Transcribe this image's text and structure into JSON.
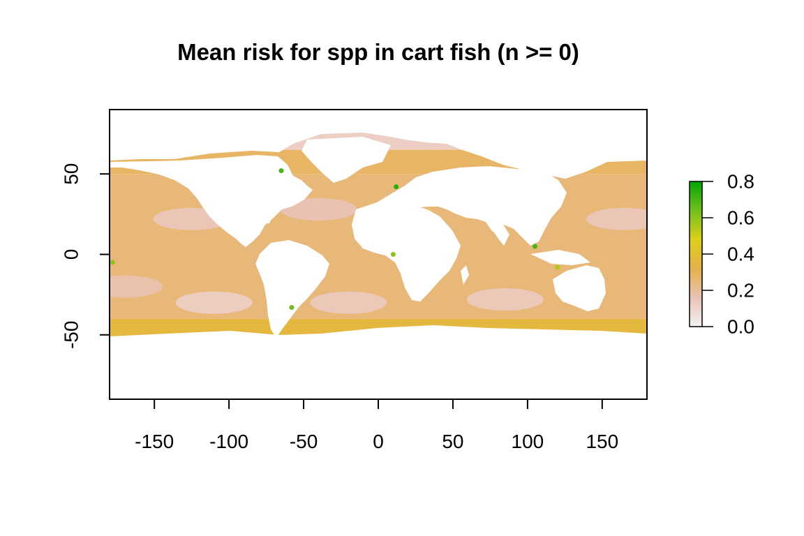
{
  "chart_data": {
    "type": "heatmap",
    "title": "Mean risk for spp in cart fish (n >= 0)",
    "xlabel": "",
    "ylabel": "",
    "xlim": [
      -180,
      180
    ],
    "ylim": [
      -90,
      90
    ],
    "x_ticks": [
      -150,
      -100,
      -50,
      0,
      50,
      100,
      150
    ],
    "x_tick_labels": [
      "-150",
      "-100",
      "-50",
      "0",
      "50",
      "100",
      "150"
    ],
    "y_ticks": [
      -50,
      0,
      50
    ],
    "y_tick_labels": [
      "-50",
      "0",
      "50"
    ],
    "legend": {
      "placement": "right",
      "range": [
        0,
        0.8
      ],
      "ticks": [
        0,
        0.2,
        0.4,
        0.6,
        0.8
      ],
      "tick_labels": [
        "0.0",
        "0.2",
        "0.4",
        "0.6",
        "0.8"
      ],
      "colors": [
        "#f2f2f2",
        "#eac2b4",
        "#e6b04a",
        "#dcd018",
        "#72c01a",
        "#00a600"
      ]
    },
    "ocean_bands": [
      {
        "lat_min": -55,
        "lat_max": -40,
        "value": 0.36
      },
      {
        "lat_min": -40,
        "lat_max": 50,
        "value": 0.25
      },
      {
        "lat_min": 50,
        "lat_max": 65,
        "value": 0.28
      },
      {
        "lat_min": 65,
        "lat_max": 80,
        "value": 0.12
      }
    ],
    "low_risk_gyres": [
      {
        "lon": -125,
        "lat": 22,
        "value": 0.15
      },
      {
        "lon": 165,
        "lat": 22,
        "value": 0.15
      },
      {
        "lon": -110,
        "lat": -30,
        "value": 0.12
      },
      {
        "lon": -20,
        "lat": -30,
        "value": 0.14
      },
      {
        "lon": 85,
        "lat": -28,
        "value": 0.14
      },
      {
        "lon": -40,
        "lat": 28,
        "value": 0.16
      },
      {
        "lon": -170,
        "lat": -20,
        "value": 0.17
      }
    ],
    "hotspots": [
      {
        "lon": -65,
        "lat": 52,
        "value": 0.7
      },
      {
        "lon": 12,
        "lat": 42,
        "value": 0.75
      },
      {
        "lon": 105,
        "lat": 5,
        "value": 0.7
      },
      {
        "lon": -58,
        "lat": -33,
        "value": 0.65
      },
      {
        "lon": 10,
        "lat": 0,
        "value": 0.6
      },
      {
        "lon": 120,
        "lat": -8,
        "value": 0.55
      },
      {
        "lon": -178,
        "lat": -5,
        "value": 0.6
      }
    ]
  }
}
